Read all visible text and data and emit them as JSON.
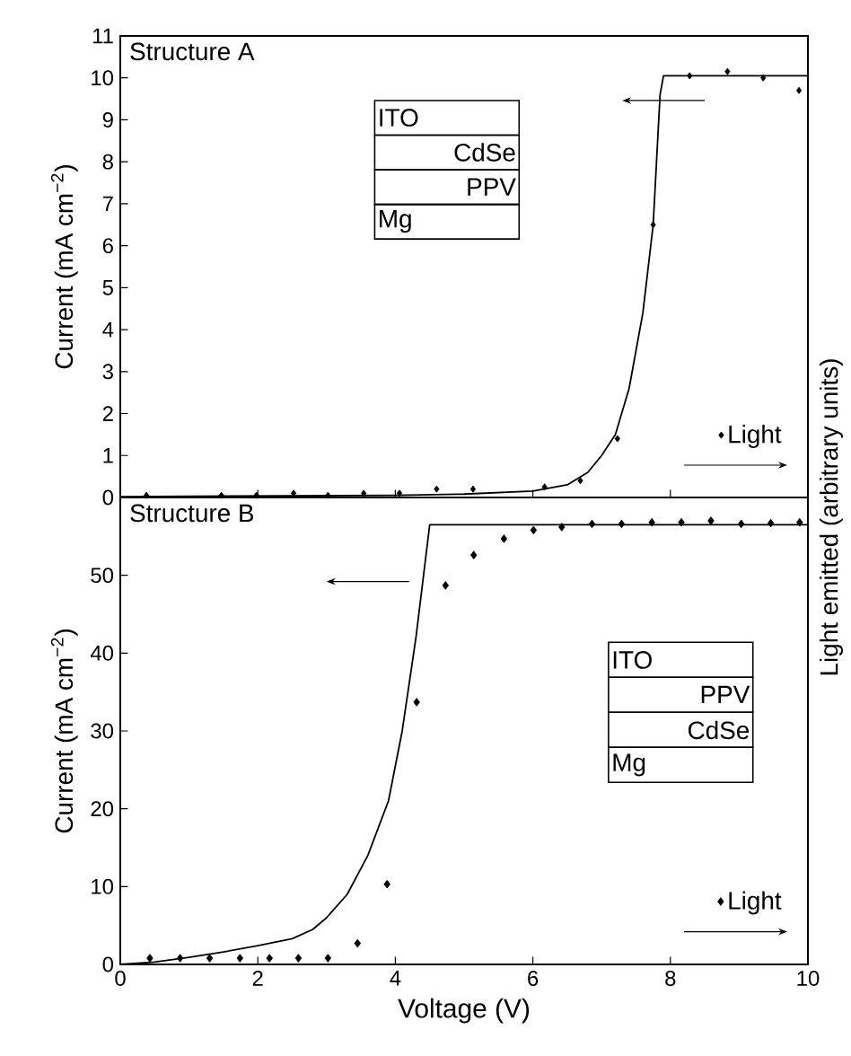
{
  "chart_data": [
    {
      "type": "line",
      "title": "Structure A",
      "ylabel": "Current (mA cm$^{−2}$)",
      "y2label": "Light emitted (arbitrary units)",
      "xlim": [
        0,
        10
      ],
      "xticks": [
        0,
        2,
        4,
        6,
        8,
        10
      ],
      "ylim": [
        0,
        11
      ],
      "yticks": [
        0,
        1,
        2,
        3,
        4,
        5,
        6,
        7,
        8,
        9,
        10,
        11
      ],
      "tick_labels": "y",
      "legend": "bottom right",
      "annotations": [
        "ITO",
        "CdSe",
        "PPV",
        "Mg"
      ],
      "series": [
        {
          "color": "#000000",
          "x": [
            0,
            4,
            5,
            6,
            6.5,
            6.8,
            7.0,
            7.2,
            7.4,
            7.6,
            7.75,
            7.85,
            7.9,
            10
          ],
          "values": [
            0.02,
            0.05,
            0.08,
            0.15,
            0.3,
            0.6,
            1.0,
            1.5,
            2.6,
            4.4,
            6.5,
            9.6,
            10.05,
            10.05
          ]
        },
        {
          "type": "scatter",
          "name": "Light",
          "marker": "diamond",
          "color": "#000000",
          "x": [
            0.38,
            1.47,
            1.98,
            2.52,
            3.02,
            3.54,
            4.06,
            4.6,
            5.13,
            6.17,
            6.69,
            7.23,
            7.75,
            8.28,
            8.83,
            9.35,
            9.87
          ],
          "values": [
            0.05,
            0.05,
            0.05,
            0.1,
            0.05,
            0.1,
            0.1,
            0.2,
            0.2,
            0.25,
            0.4,
            1.4,
            6.5,
            10.05,
            10.15,
            10.0,
            9.7
          ]
        }
      ]
    },
    {
      "type": "line",
      "title": "Structure B",
      "xlabel": "Voltage (V)",
      "ylabel": "Current (mA cm$^{−2}$)",
      "xlim": [
        0,
        10
      ],
      "xticks": [
        0,
        2,
        4,
        6,
        8,
        10
      ],
      "ylim": [
        0,
        60
      ],
      "yticks": [
        0,
        10,
        20,
        30,
        40,
        50,
        {
          "value": 60,
          "label": null
        }
      ],
      "legend": "bottom right",
      "annotations": [
        "ITO",
        "PPV",
        "CdSe",
        "Mg"
      ],
      "series": [
        {
          "color": "#000000",
          "x": [
            0,
            0.5,
            1,
            1.5,
            2,
            2.5,
            2.8,
            3,
            3.3,
            3.6,
            3.9,
            4.1,
            4.3,
            4.5,
            10
          ],
          "values": [
            0,
            0.3,
            0.9,
            1.6,
            2.4,
            3.3,
            4.5,
            6,
            9,
            14,
            21,
            30,
            42,
            56.5,
            56.5
          ]
        },
        {
          "type": "scatter",
          "name": "Light",
          "marker": "diamond",
          "color": "#000000",
          "x": [
            0.43,
            0.87,
            1.3,
            1.74,
            2.17,
            2.59,
            3.02,
            3.45,
            3.88,
            4.31,
            4.73,
            5.14,
            5.58,
            6.01,
            6.42,
            6.86,
            7.29,
            7.73,
            8.16,
            8.59,
            9.03,
            9.46,
            9.88
          ],
          "values": [
            0.8,
            0.8,
            0.8,
            0.8,
            0.8,
            0.8,
            0.8,
            2.7,
            10.3,
            33.7,
            48.7,
            52.6,
            54.7,
            55.8,
            56.2,
            56.6,
            56.6,
            56.8,
            56.8,
            57,
            56.6,
            56.7,
            56.8
          ]
        }
      ]
    }
  ]
}
